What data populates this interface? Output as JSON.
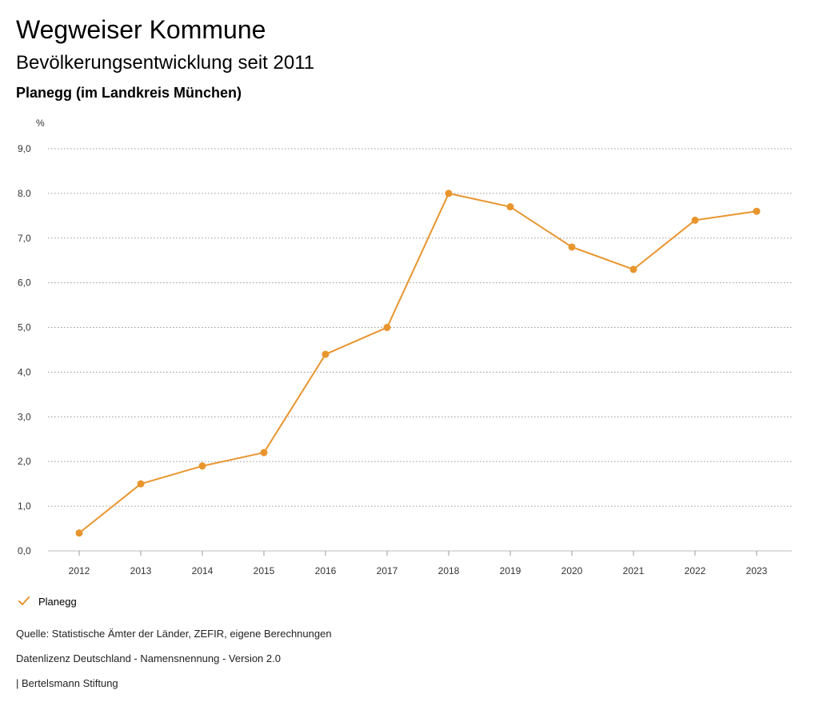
{
  "header": {
    "title": "Wegweiser Kommune",
    "subtitle": "Bevölkerungsentwicklung seit 2011",
    "place": "Planegg (im Landkreis München)"
  },
  "chart_data": {
    "type": "line",
    "title": "Bevölkerungsentwicklung seit 2011",
    "xlabel": "",
    "ylabel": "%",
    "ylim": [
      0,
      9
    ],
    "y_ticks": [
      0,
      1,
      2,
      3,
      4,
      5,
      6,
      7,
      8,
      9
    ],
    "y_tick_labels": [
      "0,0",
      "1,0",
      "2,0",
      "3,0",
      "4,0",
      "5,0",
      "6,0",
      "7,0",
      "8.0",
      "9,0"
    ],
    "grid": true,
    "legend_position": "bottom-left",
    "categories": [
      "2012",
      "2013",
      "2014",
      "2015",
      "2016",
      "2017",
      "2018",
      "2019",
      "2020",
      "2021",
      "2022",
      "2023"
    ],
    "series": [
      {
        "name": "Planegg",
        "color": "#e8952e",
        "values": [
          0.4,
          1.5,
          1.9,
          2.2,
          4.4,
          5.0,
          8.0,
          7.7,
          6.8,
          6.3,
          7.4,
          7.6
        ]
      }
    ]
  },
  "legend": {
    "label": "Planegg",
    "icon": "check-icon"
  },
  "footer": {
    "source": "Quelle: Statistische Ämter der Länder, ZEFIR, eigene Berechnungen",
    "license": "Datenlizenz Deutschland - Namensnennung - Version 2.0",
    "publisher": "| Bertelsmann Stiftung"
  }
}
